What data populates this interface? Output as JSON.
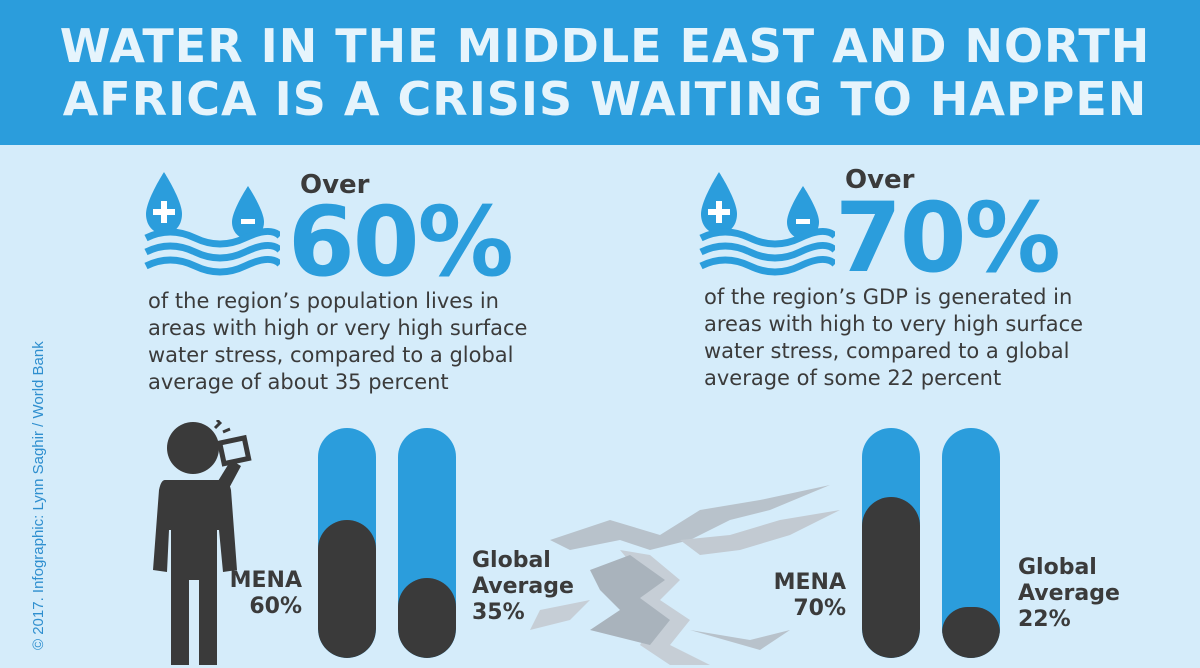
{
  "header": {
    "title": "WATER IN THE MIDDLE EAST AND NORTH\nAFRICA IS A CRISIS WAITING TO HAPPEN"
  },
  "credit": "© 2017. Infographic: Lynn Saghir / World Bank",
  "colors": {
    "banner": "#2b9ddc",
    "background": "#d5ecfa",
    "dark": "#3a3a3a",
    "accent": "#2b9ddc"
  },
  "stats": [
    {
      "over_label": "Over",
      "value_text": "60%",
      "description": "of the region’s population lives in\nareas with high or very high surface\nwater stress, compared to a global\naverage of about 35 percent",
      "icon": "water-drops-waves-icon"
    },
    {
      "over_label": "Over",
      "value_text": "70%",
      "description": "of the region’s GDP is generated in\nareas with high to very high surface\nwater stress, compared to a global\naverage of some 22 percent",
      "icon": "water-drops-waves-icon"
    }
  ],
  "bars_left": [
    {
      "label": "MENA\n60%",
      "value": 0.6
    },
    {
      "label": "Global\nAverage\n35%",
      "value": 0.35
    }
  ],
  "bars_right": [
    {
      "label": "MENA\n70%",
      "value": 0.7
    },
    {
      "label": "Global\nAverage\n22%",
      "value": 0.22
    }
  ],
  "illustrations": {
    "person": "person-drinking-empty-glass-icon",
    "ground": "cracked-ground-icon"
  }
}
